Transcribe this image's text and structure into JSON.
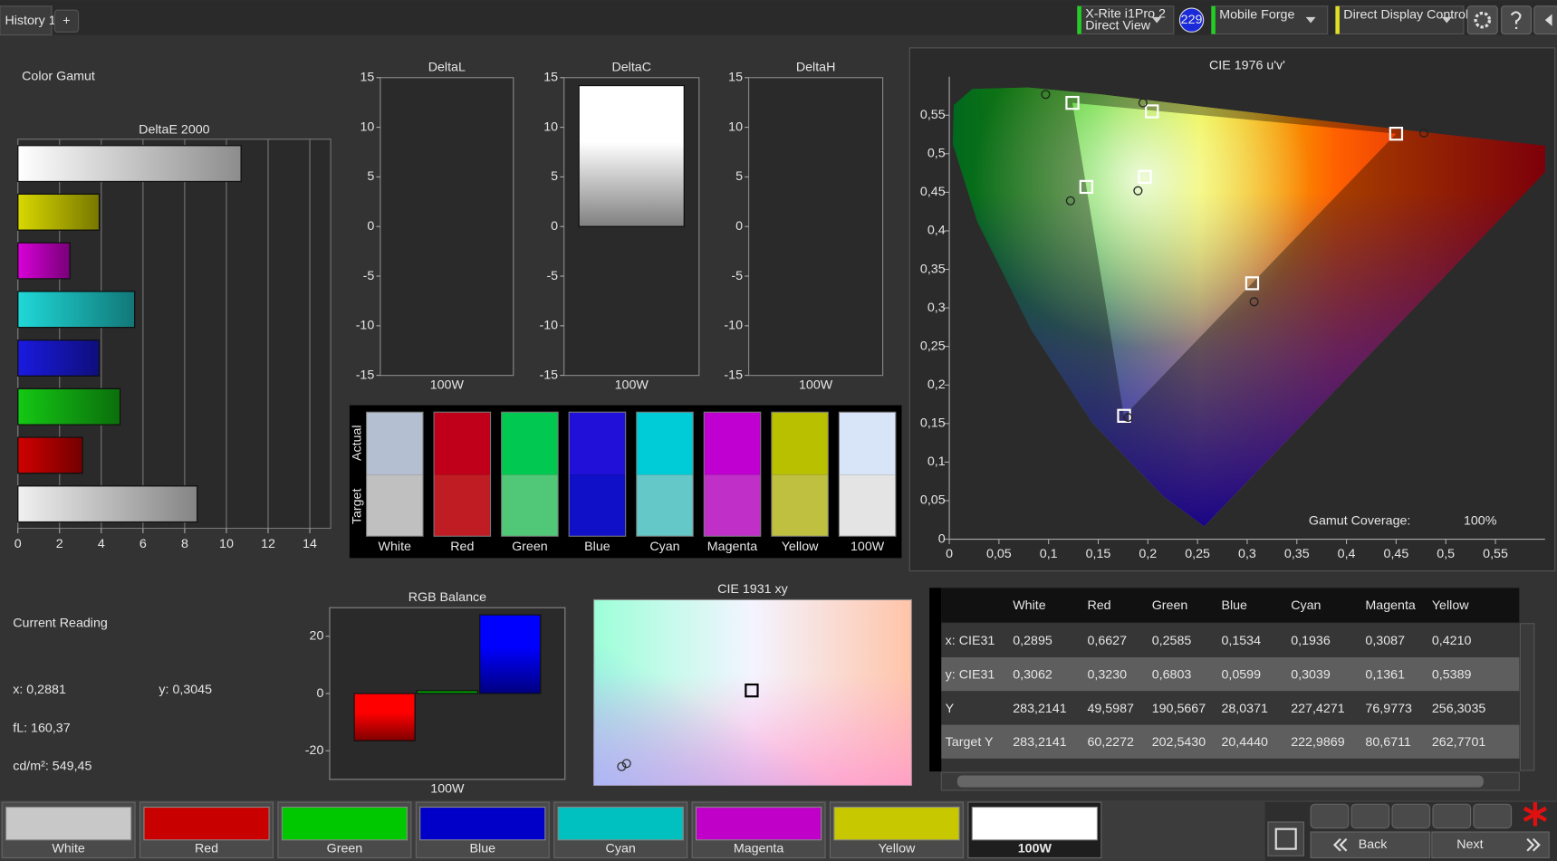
{
  "toolbar": {
    "tab": "History 1",
    "add_tab": "+",
    "meter": "X-Rite i1Pro 2",
    "meter_mode": "Direct View",
    "badge": "229",
    "profile": "Mobile Forge",
    "control": "Direct Display Control"
  },
  "title": "Color Gamut",
  "chart_data": [
    {
      "type": "hbar",
      "title": "DeltaE 2000",
      "categories": [
        null,
        null,
        null,
        null,
        null,
        null,
        null,
        null
      ],
      "values": [
        10.7,
        3.9,
        2.5,
        5.6,
        3.9,
        4.9,
        3.1,
        8.6
      ],
      "colors": [
        "#ffffff",
        "#d8d800",
        "#d800d8",
        "#20d8d8",
        "#1a1ae0",
        "#14c814",
        "#d00000",
        "#f0f0f0"
      ],
      "xlim": [
        0,
        15
      ],
      "xticks": [
        0,
        2,
        4,
        6,
        8,
        10,
        12,
        14
      ],
      "grid": true
    },
    {
      "type": "bar",
      "title": "DeltaL",
      "categories": [
        "100W"
      ],
      "values": [
        0
      ],
      "color": "#ffffff",
      "ylim": [
        -15,
        15
      ],
      "yticks": [
        -15,
        -10,
        -5,
        0,
        5,
        10,
        15
      ]
    },
    {
      "type": "bar",
      "title": "DeltaC",
      "categories": [
        "100W"
      ],
      "values": [
        14.2
      ],
      "color": "#ffffff",
      "ylim": [
        -15,
        15
      ],
      "yticks": [
        -15,
        -10,
        -5,
        0,
        5,
        10,
        15
      ]
    },
    {
      "type": "bar",
      "title": "DeltaH",
      "categories": [
        "100W"
      ],
      "values": [
        0
      ],
      "color": "#ffffff",
      "ylim": [
        -15,
        15
      ],
      "yticks": [
        -15,
        -10,
        -5,
        0,
        5,
        10,
        15
      ]
    },
    {
      "type": "bar",
      "title": "RGB Balance",
      "categories": [
        "100W"
      ],
      "series": [
        {
          "color": "#ff0000",
          "values": [
            -16.5
          ]
        },
        {
          "color": "#00b000",
          "values": [
            1
          ]
        },
        {
          "color": "#0000ff",
          "values": [
            27.5
          ]
        }
      ],
      "ylim": [
        -30,
        30
      ],
      "yticks": [
        -20,
        0,
        20
      ]
    },
    {
      "type": "scatter",
      "title": "CIE 1976 u'v'",
      "series": [
        {
          "marker": "square",
          "color": "#ffffff",
          "x": [
            0.197,
            0.45,
            0.124,
            0.176,
            0.138,
            0.305,
            0.204
          ],
          "values": [
            0.47,
            0.526,
            0.566,
            0.16,
            0.457,
            0.332,
            0.555
          ]
        },
        {
          "marker": "circle",
          "color": "#222222",
          "x": [
            0.19,
            0.478,
            0.097,
            0.18,
            0.122,
            0.307,
            0.195
          ],
          "values": [
            0.452,
            0.527,
            0.577,
            0.158,
            0.439,
            0.308,
            0.566
          ]
        }
      ],
      "xlim": [
        0,
        0.6
      ],
      "ylim": [
        0,
        0.6
      ],
      "xticks": [
        0,
        {
          "value": 0.05,
          "label": "0,05"
        },
        {
          "value": 0.1,
          "label": "0,1"
        },
        {
          "value": 0.15,
          "label": "0,15"
        },
        {
          "value": 0.2,
          "label": "0,2"
        },
        {
          "value": 0.25,
          "label": "0,25"
        },
        {
          "value": 0.3,
          "label": "0,3"
        },
        {
          "value": 0.35,
          "label": "0,35"
        },
        {
          "value": 0.4,
          "label": "0,4"
        },
        {
          "value": 0.45,
          "label": "0,45"
        },
        {
          "value": 0.5,
          "label": "0,5"
        },
        {
          "value": 0.55,
          "label": "0,55"
        }
      ],
      "yticks": [
        0,
        {
          "value": 0.05,
          "label": "0,05"
        },
        {
          "value": 0.1,
          "label": "0,1"
        },
        {
          "value": 0.15,
          "label": "0,15"
        },
        {
          "value": 0.2,
          "label": "0,2"
        },
        {
          "value": 0.25,
          "label": "0,25"
        },
        {
          "value": 0.3,
          "label": "0,3"
        },
        {
          "value": 0.35,
          "label": "0,35"
        },
        {
          "value": 0.4,
          "label": "0,4"
        },
        {
          "value": 0.45,
          "label": "0,45"
        },
        {
          "value": 0.5,
          "label": "0,5"
        },
        {
          "value": 0.55,
          "label": "0,55"
        }
      ],
      "annotation": "Gamut Coverage:",
      "annotation_value": "100%"
    },
    {
      "type": "scatter",
      "title": "CIE 1931 xy",
      "series": [
        {
          "marker": "square",
          "color": "#000000",
          "x": [
            0.3146
          ],
          "values": [
            0.329
          ]
        },
        {
          "marker": "circle",
          "color": "#333333",
          "x": [
            0.2614,
            0.2634
          ],
          "values": [
            0.2737,
            0.2759
          ]
        }
      ],
      "xlim": [
        0.25,
        0.38
      ],
      "ylim": [
        0.26,
        0.395
      ]
    }
  ],
  "swatches": {
    "row_labels": [
      "Actual",
      "Target"
    ],
    "labels": [
      "White",
      "Red",
      "Green",
      "Blue",
      "Cyan",
      "Magenta",
      "Yellow",
      "100W"
    ],
    "actual_colors": [
      "#b4bfd2",
      "#c0001a",
      "#00c850",
      "#2010d8",
      "#00ccd8",
      "#c000d0",
      "#b8c000",
      "#d8e4f8"
    ],
    "target_colors": [
      "#c0c0c0",
      "#c01c24",
      "#50c878",
      "#1010c8",
      "#64c8c8",
      "#c030c8",
      "#c0c040",
      "#e4e4e4"
    ]
  },
  "current_reading": {
    "title": "Current Reading",
    "x": "x: 0,2881",
    "y": "y: 0,3045",
    "fl": "fL: 160,37",
    "luminance": "cd/m²: 549,45"
  },
  "table": {
    "header": [
      "White",
      "Red",
      "Green",
      "Blue",
      "Cyan",
      "Magenta",
      "Yellow"
    ],
    "rows": [
      {
        "label": "x: CIE31",
        "cells": [
          "0,2895",
          "0,6627",
          "0,2585",
          "0,1534",
          "0,1936",
          "0,3087",
          "0,4210"
        ]
      },
      {
        "label": "y: CIE31",
        "cells": [
          "0,3062",
          "0,3230",
          "0,6803",
          "0,0599",
          "0,3039",
          "0,1361",
          "0,5389"
        ]
      },
      {
        "label": "Y",
        "cells": [
          "283,2141",
          "49,5987",
          "190,5667",
          "28,0371",
          "227,4271",
          "76,9773",
          "256,3035"
        ]
      },
      {
        "label": "Target Y",
        "cells": [
          "283,2141",
          "60,2272",
          "202,5430",
          "20,4440",
          "222,9869",
          "80,6711",
          "262,7701"
        ]
      }
    ]
  },
  "patches": [
    {
      "label": "White",
      "color": "#c8c8c8"
    },
    {
      "label": "Red",
      "color": "#c80000"
    },
    {
      "label": "Green",
      "color": "#00c800"
    },
    {
      "label": "Blue",
      "color": "#0000c8"
    },
    {
      "label": "Cyan",
      "color": "#00c0c0"
    },
    {
      "label": "Magenta",
      "color": "#c000c8"
    },
    {
      "label": "Yellow",
      "color": "#c8c800"
    },
    {
      "label": "100W",
      "color": "#ffffff"
    }
  ],
  "nav": {
    "back": "Back",
    "next": "Next"
  }
}
